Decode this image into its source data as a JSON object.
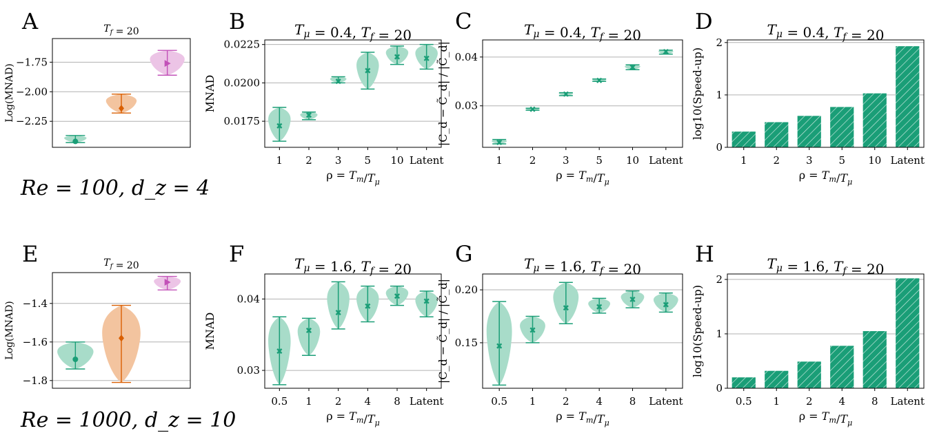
{
  "figure": {
    "row_captions": [
      "Re = 100, d_z = 4",
      "Re = 1000, d_z = 10"
    ],
    "colors": {
      "green": "#1a9e77",
      "green_fill": "#a8dcc9",
      "orange": "#d95f02",
      "orange_fill": "#f3c49f",
      "pink": "#c251b8",
      "pink_fill": "#ecc4e6",
      "bar_hatch": "#ffffff"
    }
  },
  "chart_data": [
    {
      "panel": "A",
      "type": "violin",
      "title": "T_f = 20",
      "ylabel": "Log(MNAD)",
      "ylim": [
        -2.47,
        -1.55
      ],
      "yticks": [
        -2.25,
        -2.0,
        -1.75
      ],
      "ytick_labels": [
        "−2.25",
        "−2.00",
        "−1.75"
      ],
      "grid": true,
      "series": [
        {
          "color": "green",
          "marker": "circle",
          "median": -2.42,
          "min": -2.43,
          "max": -2.37
        },
        {
          "color": "orange",
          "marker": "diamond",
          "median": -2.14,
          "min": -2.18,
          "max": -2.02
        },
        {
          "color": "pink",
          "marker": "triangle",
          "median": -1.76,
          "min": -1.86,
          "max": -1.65
        }
      ]
    },
    {
      "panel": "B",
      "type": "violin",
      "title": "T_μ = 0.4, T_f = 20",
      "ylabel": "MNAD",
      "xlabel": "ρ = T_m/T_μ",
      "categories": [
        "1",
        "2",
        "3",
        "5",
        "10",
        "Latent"
      ],
      "ylim": [
        0.0158,
        0.0228
      ],
      "yticks": [
        0.0175,
        0.02,
        0.0225
      ],
      "ytick_labels": [
        "0.0175",
        "0.0200",
        "0.0225"
      ],
      "grid": true,
      "series": [
        {
          "color": "green",
          "points": [
            {
              "median": 0.0172,
              "min": 0.0162,
              "max": 0.0184
            },
            {
              "median": 0.0179,
              "min": 0.0176,
              "max": 0.0181
            },
            {
              "median": 0.0201,
              "min": 0.02,
              "max": 0.0204
            },
            {
              "median": 0.0208,
              "min": 0.0196,
              "max": 0.022
            },
            {
              "median": 0.0217,
              "min": 0.0212,
              "max": 0.0224
            },
            {
              "median": 0.0216,
              "min": 0.0209,
              "max": 0.0225
            }
          ]
        }
      ]
    },
    {
      "panel": "C",
      "type": "violin",
      "title": "T_μ = 0.4, T_f = 20",
      "ylabel": "|C_d − C̃_d| / |C̃_d|",
      "xlabel": "ρ = T_m/T_μ",
      "categories": [
        "1",
        "2",
        "3",
        "5",
        "10",
        "Latent"
      ],
      "ylim": [
        0.0215,
        0.0435
      ],
      "yticks": [
        0.03,
        0.04
      ],
      "ytick_labels": [
        "0.03",
        "0.04"
      ],
      "grid": true,
      "series": [
        {
          "color": "green",
          "points": [
            {
              "median": 0.0225,
              "min": 0.0222,
              "max": 0.0231
            },
            {
              "median": 0.0293,
              "min": 0.0291,
              "max": 0.0295
            },
            {
              "median": 0.0324,
              "min": 0.0321,
              "max": 0.0327
            },
            {
              "median": 0.0352,
              "min": 0.035,
              "max": 0.0355
            },
            {
              "median": 0.0379,
              "min": 0.0374,
              "max": 0.0384
            },
            {
              "median": 0.0411,
              "min": 0.0406,
              "max": 0.0414
            }
          ]
        }
      ]
    },
    {
      "panel": "D",
      "type": "bar",
      "title": "T_μ = 0.4, T_f = 20",
      "ylabel": "log10(Speed-up)",
      "xlabel": "ρ = T_m/T_μ",
      "categories": [
        "1",
        "2",
        "3",
        "5",
        "10",
        "Latent"
      ],
      "values": [
        0.3,
        0.48,
        0.6,
        0.77,
        1.03,
        1.93
      ],
      "ylim": [
        0,
        2.05
      ],
      "yticks": [
        0,
        1,
        2
      ],
      "ytick_labels": [
        "0",
        "1",
        "2"
      ],
      "grid": true
    },
    {
      "panel": "E",
      "type": "violin",
      "title": "T_f = 20",
      "ylabel": "Log(MNAD)",
      "ylim": [
        -1.84,
        -1.24
      ],
      "yticks": [
        -1.8,
        -1.6,
        -1.4
      ],
      "ytick_labels": [
        "−1.8",
        "−1.6",
        "−1.4"
      ],
      "grid": true,
      "series": [
        {
          "color": "green",
          "marker": "circle",
          "median": -1.69,
          "min": -1.74,
          "max": -1.6
        },
        {
          "color": "orange",
          "marker": "diamond",
          "median": -1.58,
          "min": -1.81,
          "max": -1.41
        },
        {
          "color": "pink",
          "marker": "triangle",
          "median": -1.29,
          "min": -1.33,
          "max": -1.26
        }
      ]
    },
    {
      "panel": "F",
      "type": "violin",
      "title": "T_μ = 1.6, T_f = 20",
      "ylabel": "MNAD",
      "xlabel": "ρ = T_m/T_μ",
      "categories": [
        "0.5",
        "1",
        "2",
        "4",
        "8",
        "Latent"
      ],
      "ylim": [
        0.0275,
        0.0435
      ],
      "yticks": [
        0.03,
        0.04
      ],
      "ytick_labels": [
        "0.03",
        "0.04"
      ],
      "grid": true,
      "series": [
        {
          "color": "green",
          "points": [
            {
              "median": 0.0327,
              "min": 0.028,
              "max": 0.0375
            },
            {
              "median": 0.0356,
              "min": 0.0321,
              "max": 0.0373
            },
            {
              "median": 0.0381,
              "min": 0.0358,
              "max": 0.0424
            },
            {
              "median": 0.039,
              "min": 0.0368,
              "max": 0.0418
            },
            {
              "median": 0.0404,
              "min": 0.0391,
              "max": 0.0418
            },
            {
              "median": 0.0397,
              "min": 0.0375,
              "max": 0.0411
            }
          ]
        }
      ]
    },
    {
      "panel": "G",
      "type": "violin",
      "title": "T_μ = 1.6, T_f = 20",
      "ylabel": "|C_d − C̃_d| / |C̃_d|",
      "xlabel": "ρ = T_m/T_μ",
      "categories": [
        "0.5",
        "1",
        "2",
        "4",
        "8",
        "Latent"
      ],
      "ylim": [
        0.107,
        0.215
      ],
      "yticks": [
        0.15,
        0.2
      ],
      "ytick_labels": [
        "0.15",
        "0.20"
      ],
      "grid": true,
      "series": [
        {
          "color": "green",
          "points": [
            {
              "median": 0.147,
              "min": 0.11,
              "max": 0.189
            },
            {
              "median": 0.162,
              "min": 0.15,
              "max": 0.175
            },
            {
              "median": 0.183,
              "min": 0.168,
              "max": 0.207
            },
            {
              "median": 0.184,
              "min": 0.178,
              "max": 0.192
            },
            {
              "median": 0.191,
              "min": 0.183,
              "max": 0.199
            },
            {
              "median": 0.186,
              "min": 0.179,
              "max": 0.197
            }
          ]
        }
      ]
    },
    {
      "panel": "H",
      "type": "bar",
      "title": "T_μ = 1.6, T_f = 20",
      "ylabel": "log10(Speed-up)",
      "xlabel": "ρ = T_m/T_μ",
      "categories": [
        "0.5",
        "1",
        "2",
        "4",
        "8",
        "Latent"
      ],
      "values": [
        0.2,
        0.32,
        0.49,
        0.78,
        1.05,
        2.02
      ],
      "ylim": [
        0,
        2.1
      ],
      "yticks": [
        0,
        1,
        2
      ],
      "ytick_labels": [
        "0",
        "1",
        "2"
      ],
      "grid": true
    }
  ]
}
